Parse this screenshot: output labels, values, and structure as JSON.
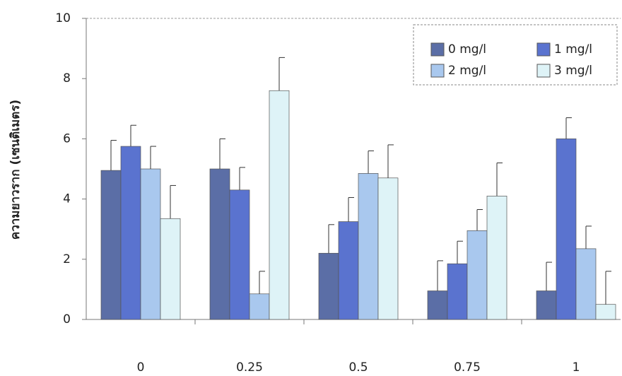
{
  "chart_data": {
    "type": "bar",
    "y_label": "ความยาวราก (เซนติเมตร)",
    "categories": [
      "0",
      "0.25",
      "0.5",
      "0.75",
      "1"
    ],
    "series": [
      {
        "name": "0 mg/l",
        "color": "#5b6ea6",
        "values": [
          4.95,
          5.0,
          2.2,
          0.95,
          0.95
        ],
        "errors": [
          1.0,
          1.0,
          0.95,
          1.0,
          0.95
        ]
      },
      {
        "name": "1 mg/l",
        "color": "#5a73cf",
        "values": [
          5.75,
          4.3,
          3.25,
          1.85,
          6.0
        ],
        "errors": [
          0.7,
          0.75,
          0.8,
          0.75,
          0.7
        ]
      },
      {
        "name": "2 mg/l",
        "color": "#a9c8ee",
        "values": [
          5.0,
          0.85,
          4.85,
          2.95,
          2.35
        ],
        "errors": [
          0.75,
          0.75,
          0.75,
          0.7,
          0.75
        ]
      },
      {
        "name": "3 mg/l",
        "color": "#def3f7",
        "values": [
          3.35,
          7.6,
          4.7,
          4.1,
          0.5
        ],
        "errors": [
          1.1,
          1.1,
          1.1,
          1.1,
          1.1
        ]
      }
    ],
    "ylim": [
      0,
      10
    ],
    "yticks": [
      0,
      2,
      4,
      6,
      8,
      10
    ],
    "legend": "top-right"
  }
}
